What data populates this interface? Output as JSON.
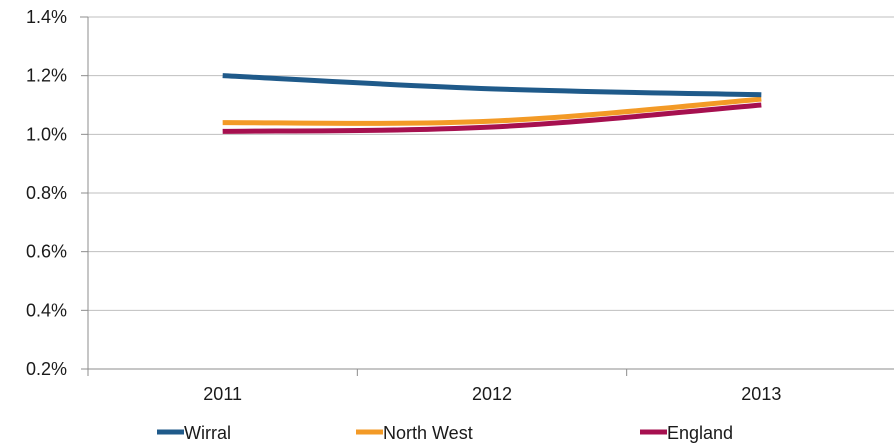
{
  "chart_data": {
    "type": "line",
    "title": "",
    "xlabel": "",
    "ylabel": "",
    "categories": [
      "2011",
      "2012",
      "2013"
    ],
    "ylim": [
      0.002,
      0.014
    ],
    "yticks": [
      {
        "value": 0.002,
        "label": "0.2%"
      },
      {
        "value": 0.004,
        "label": "0.4%"
      },
      {
        "value": 0.006,
        "label": "0.6%"
      },
      {
        "value": 0.008,
        "label": "0.8%"
      },
      {
        "value": 0.01,
        "label": "1.0%"
      },
      {
        "value": 0.012,
        "label": "1.2%"
      },
      {
        "value": 0.014,
        "label": "1.4%"
      }
    ],
    "grid": true,
    "legend_position": "bottom",
    "series": [
      {
        "name": "Wirral",
        "color": "#1f5a8a",
        "values": [
          0.012,
          0.01155,
          0.01135
        ]
      },
      {
        "name": "North West",
        "color": "#f39a26",
        "values": [
          0.0104,
          0.01045,
          0.0112
        ]
      },
      {
        "name": "England",
        "color": "#a6104f",
        "values": [
          0.0101,
          0.01025,
          0.011
        ]
      }
    ]
  }
}
